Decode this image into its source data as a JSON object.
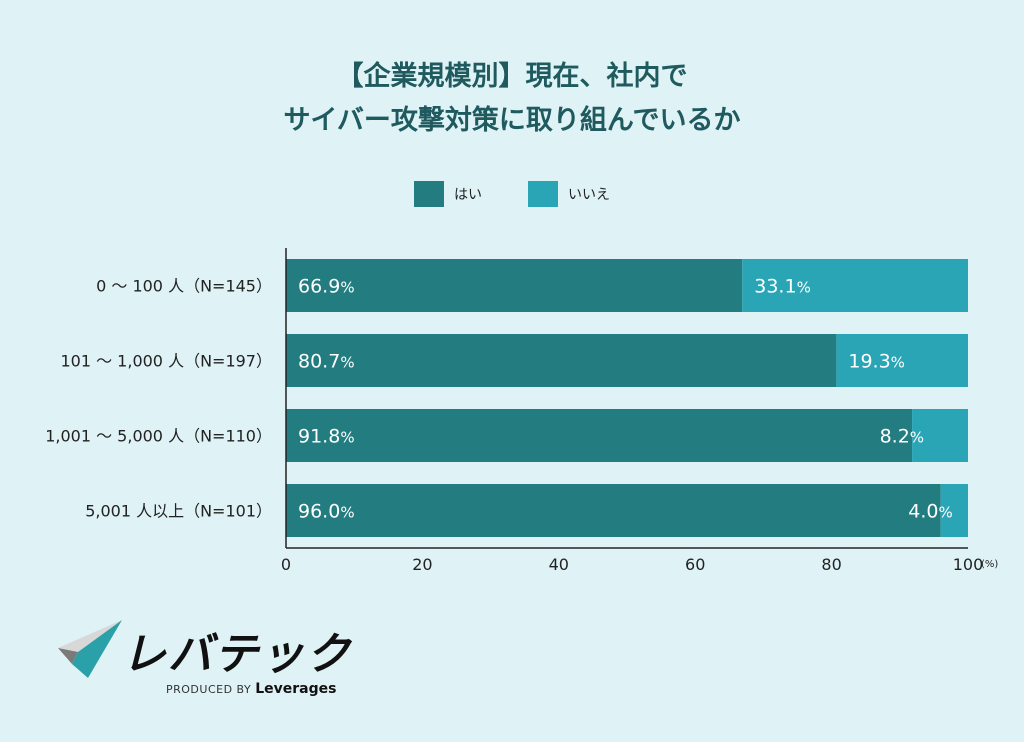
{
  "chart_data": {
    "type": "bar",
    "orientation": "horizontal",
    "stacked": true,
    "title_lines": [
      "【企業規模別】現在、社内で",
      "サイバー攻撃対策に取り組んでいるか"
    ],
    "categories": [
      "0 〜 100 人（N=145）",
      "101 〜 1,000 人（N=197）",
      "1,001 〜 5,000 人（N=110）",
      "5,001 人以上（N=101）"
    ],
    "series": [
      {
        "name": "はい",
        "color": "#237d80",
        "values": [
          66.9,
          80.7,
          91.8,
          96.0
        ]
      },
      {
        "name": "いいえ",
        "color": "#2aa5b5",
        "values": [
          33.1,
          19.3,
          8.2,
          4.0
        ]
      }
    ],
    "xticks": [
      0,
      20,
      40,
      60,
      80,
      100
    ],
    "xunit": "(%)",
    "xlim": [
      0,
      100
    ],
    "grid": false,
    "legend_position": "top-center",
    "data_label_suffix": "%"
  },
  "logo": {
    "name": "レバテック",
    "produced_by": "PRODUCED BY",
    "brand": "Leverages"
  }
}
